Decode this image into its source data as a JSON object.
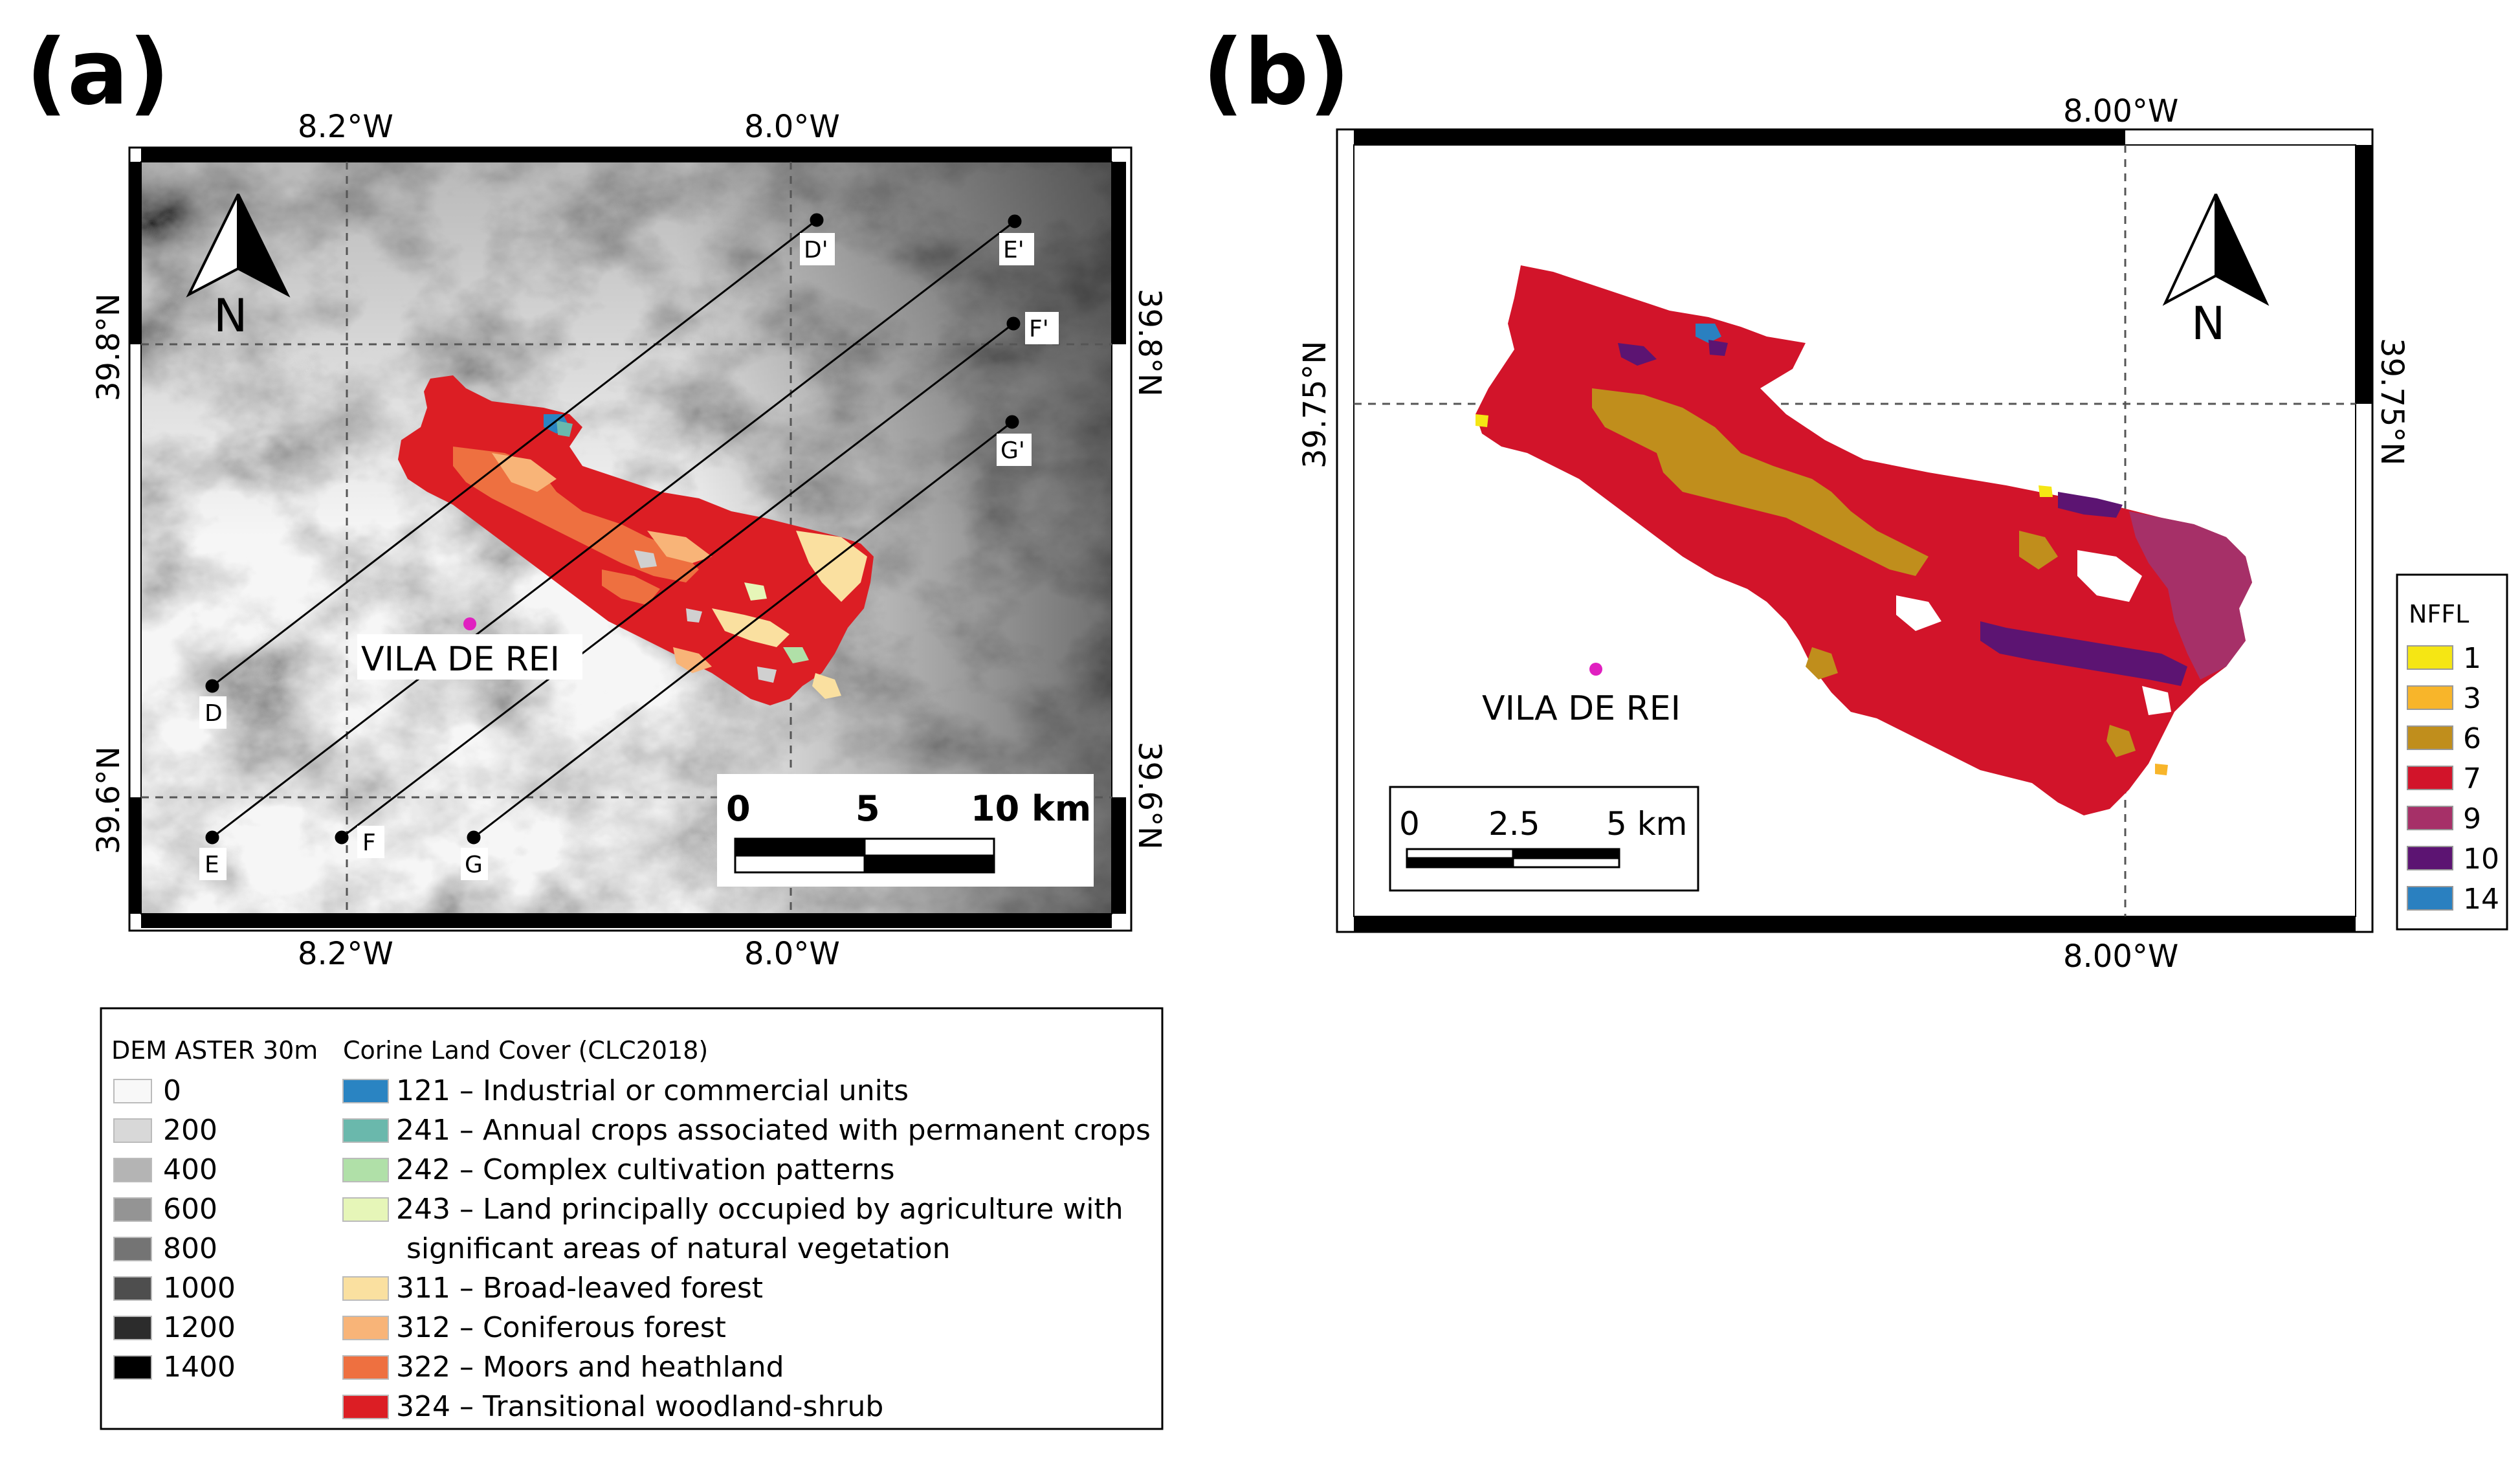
{
  "panel_a": {
    "letter": "(a)",
    "ticks_top": [
      "8.2°W",
      "8.0°W"
    ],
    "ticks_bottom": [
      "8.2°W",
      "8.0°W"
    ],
    "ticks_left": [
      "39.8°N",
      "39.6°N"
    ],
    "ticks_right": [
      "39.8°N",
      "39.6°N"
    ],
    "north_label": "N",
    "town": "VILA DE REI",
    "town_color": "#e020c0",
    "profiles": [
      {
        "start": "D",
        "end": "D'"
      },
      {
        "start": "E",
        "end": "E'"
      },
      {
        "start": "F",
        "end": "F'"
      },
      {
        "start": "G",
        "end": "G'"
      }
    ],
    "scalebar": {
      "labels": [
        "0",
        "5",
        "10 km"
      ]
    }
  },
  "panel_b": {
    "letter": "(b)",
    "ticks_top": [
      "8.00°W"
    ],
    "ticks_bottom": [
      "8.00°W"
    ],
    "ticks_left": [
      "39.75°N"
    ],
    "ticks_right": [
      "39.75°N"
    ],
    "north_label": "N",
    "town": "VILA DE REI",
    "town_color": "#e020c0",
    "scalebar": {
      "labels": [
        "0",
        "2.5",
        "5 km"
      ]
    },
    "legend": {
      "title": "NFFL",
      "items": [
        {
          "label": "1",
          "color": "#f5e614"
        },
        {
          "label": "3",
          "color": "#f8b52a"
        },
        {
          "label": "6",
          "color": "#c08e1c"
        },
        {
          "label": "7",
          "color": "#d2142a"
        },
        {
          "label": "9",
          "color": "#a63068"
        },
        {
          "label": "10",
          "color": "#5c1472"
        },
        {
          "label": "14",
          "color": "#2a80c0"
        }
      ]
    }
  },
  "legend_a": {
    "dem_title": "DEM ASTER 30m",
    "dem_items": [
      {
        "label": "0",
        "color": "#f8f8f8"
      },
      {
        "label": "200",
        "color": "#d8d8d8"
      },
      {
        "label": "400",
        "color": "#b4b4b4"
      },
      {
        "label": "600",
        "color": "#949494"
      },
      {
        "label": "800",
        "color": "#747474"
      },
      {
        "label": "1000",
        "color": "#4e4e4e"
      },
      {
        "label": "1200",
        "color": "#2c2c2c"
      },
      {
        "label": "1400",
        "color": "#000000"
      }
    ],
    "clc_title": "Corine Land Cover (CLC2018)",
    "clc_items": [
      {
        "label": "121 – Industrial or commercial units",
        "color": "#2a84c2"
      },
      {
        "label": "241 – Annual crops associated with permanent crops",
        "color": "#6ab8ac"
      },
      {
        "label": "242 – Complex cultivation patterns",
        "color": "#b0e0a8"
      },
      {
        "label": "243 – Land principally occupied by agriculture with",
        "label2": "significant areas of natural vegetation",
        "color": "#e6f6b8"
      },
      {
        "label": "311 – Broad-leaved forest",
        "color": "#fae0a0"
      },
      {
        "label": "312 – Coniferous forest",
        "color": "#f8b478"
      },
      {
        "label": "322 – Moors and heathland",
        "color": "#ee7040"
      },
      {
        "label": "324 – Transitional woodland-shrub",
        "color": "#dc1e24"
      }
    ]
  }
}
